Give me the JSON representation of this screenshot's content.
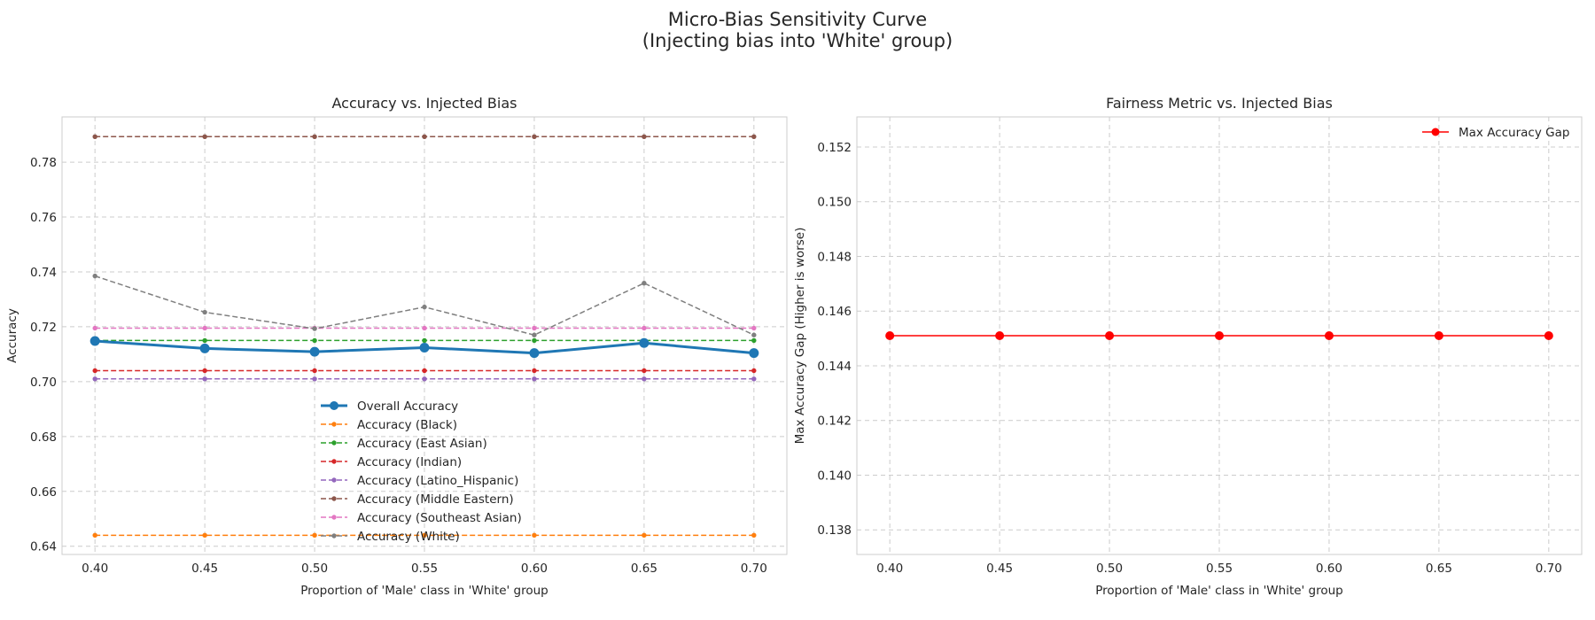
{
  "figure": {
    "title_line1": "Micro-Bias Sensitivity Curve",
    "title_line2": "(Injecting bias into 'White' group)"
  },
  "chart_data": [
    {
      "type": "line",
      "title": "Accuracy vs. Injected Bias",
      "xlabel": "Proportion of 'Male' class in 'White' group",
      "ylabel": "Accuracy",
      "x": [
        0.4,
        0.45,
        0.5,
        0.55,
        0.6,
        0.65,
        0.7
      ],
      "xticks": [
        "0.40",
        "0.45",
        "0.50",
        "0.55",
        "0.60",
        "0.65",
        "0.70"
      ],
      "xlim": [
        0.385,
        0.715
      ],
      "ylim": [
        0.637,
        0.7965
      ],
      "yticks": [
        "0.64",
        "0.66",
        "0.68",
        "0.70",
        "0.72",
        "0.74",
        "0.76",
        "0.78"
      ],
      "ytick_values": [
        0.64,
        0.66,
        0.68,
        0.7,
        0.72,
        0.74,
        0.76,
        0.78
      ],
      "grid": true,
      "legend_position": "lower-center",
      "series": [
        {
          "name": "Overall Accuracy",
          "color": "#1f77b4",
          "style": "solid",
          "marker": "circle-large",
          "width": 3,
          "values": [
            0.7148,
            0.7121,
            0.7109,
            0.7124,
            0.7104,
            0.7141,
            0.7104
          ]
        },
        {
          "name": "Accuracy (Black)",
          "color": "#ff7f0e",
          "style": "dashed",
          "marker": "circle-small",
          "width": 1.5,
          "values": [
            0.644,
            0.644,
            0.644,
            0.644,
            0.644,
            0.644,
            0.644
          ]
        },
        {
          "name": "Accuracy (East Asian)",
          "color": "#2ca02c",
          "style": "dashed",
          "marker": "circle-small",
          "width": 1.5,
          "values": [
            0.715,
            0.715,
            0.715,
            0.715,
            0.715,
            0.715,
            0.715
          ]
        },
        {
          "name": "Accuracy (Indian)",
          "color": "#d62728",
          "style": "dashed",
          "marker": "circle-small",
          "width": 1.5,
          "values": [
            0.704,
            0.704,
            0.704,
            0.704,
            0.704,
            0.704,
            0.704
          ]
        },
        {
          "name": "Accuracy (Latino_Hispanic)",
          "color": "#9467bd",
          "style": "dashed",
          "marker": "circle-small",
          "width": 1.5,
          "values": [
            0.701,
            0.701,
            0.701,
            0.701,
            0.701,
            0.701,
            0.701
          ]
        },
        {
          "name": "Accuracy (Middle Eastern)",
          "color": "#8c564b",
          "style": "dashed",
          "marker": "circle-small",
          "width": 1.5,
          "values": [
            0.7893,
            0.7893,
            0.7893,
            0.7893,
            0.7893,
            0.7893,
            0.7893
          ]
        },
        {
          "name": "Accuracy (Southeast Asian)",
          "color": "#e377c2",
          "style": "dashed",
          "marker": "circle-small",
          "width": 1.5,
          "values": [
            0.7195,
            0.7195,
            0.7195,
            0.7195,
            0.7195,
            0.7195,
            0.7195
          ]
        },
        {
          "name": "Accuracy (White)",
          "color": "#7f7f7f",
          "style": "dashed",
          "marker": "circle-small",
          "width": 1.5,
          "values": [
            0.7385,
            0.7253,
            0.7193,
            0.7272,
            0.717,
            0.7359,
            0.717
          ]
        }
      ]
    },
    {
      "type": "line",
      "title": "Fairness Metric vs. Injected Bias",
      "xlabel": "Proportion of 'Male' class in 'White' group",
      "ylabel": "Max Accuracy Gap (Higher is worse)",
      "x": [
        0.4,
        0.45,
        0.5,
        0.55,
        0.6,
        0.65,
        0.7
      ],
      "xticks": [
        "0.40",
        "0.45",
        "0.50",
        "0.55",
        "0.60",
        "0.65",
        "0.70"
      ],
      "xlim": [
        0.385,
        0.715
      ],
      "ylim": [
        0.1371,
        0.1531
      ],
      "yticks": [
        "0.138",
        "0.140",
        "0.142",
        "0.144",
        "0.146",
        "0.148",
        "0.150",
        "0.152"
      ],
      "ytick_values": [
        0.138,
        0.14,
        0.142,
        0.144,
        0.146,
        0.148,
        0.15,
        0.152
      ],
      "grid": true,
      "legend_position": "upper-right",
      "series": [
        {
          "name": "Max Accuracy Gap",
          "color": "#ff0000",
          "style": "solid",
          "marker": "circle-large",
          "width": 1.5,
          "values": [
            0.1451,
            0.1451,
            0.1451,
            0.1451,
            0.1451,
            0.1451,
            0.1451
          ]
        }
      ]
    }
  ]
}
